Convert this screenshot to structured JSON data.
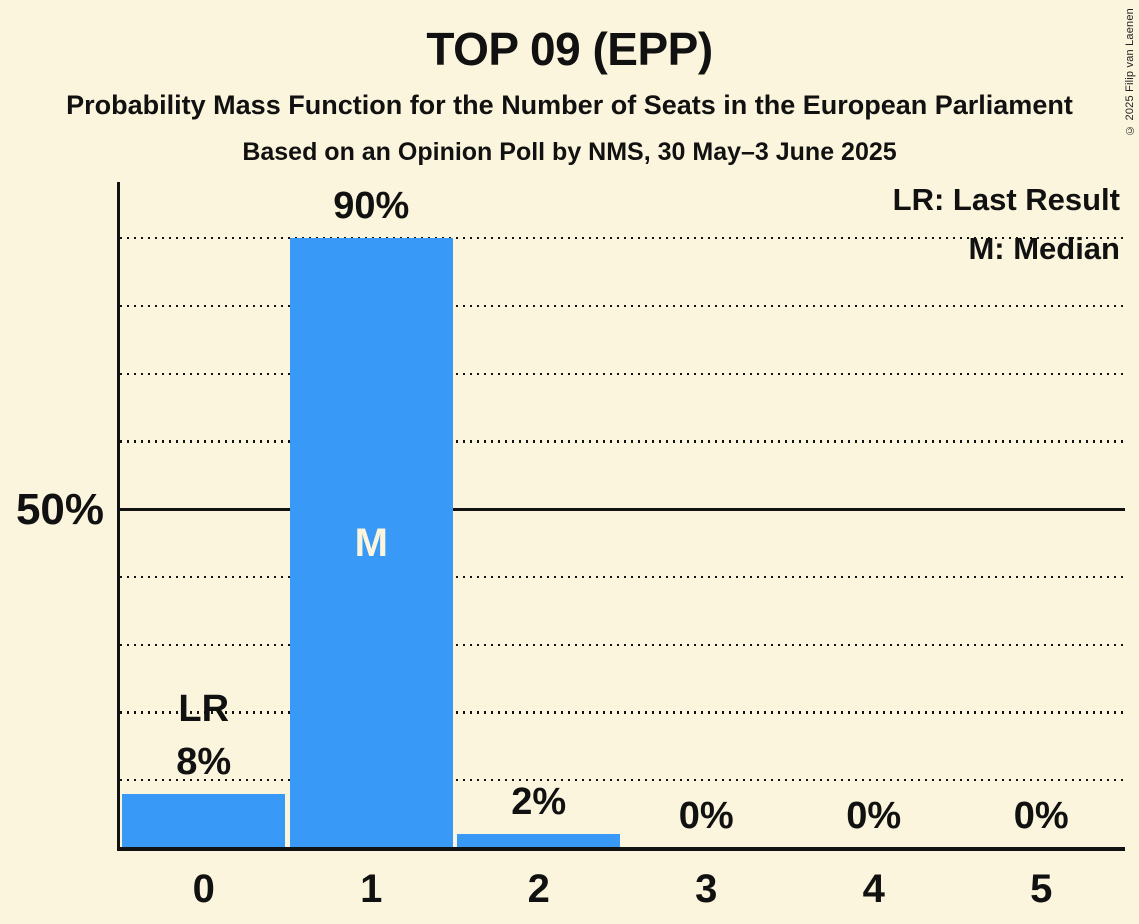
{
  "title": "TOP 09 (EPP)",
  "subtitle1": "Probability Mass Function for the Number of Seats in the European Parliament",
  "subtitle2": "Based on an Opinion Poll by NMS, 30 May–3 June 2025",
  "copyright": "© 2025 Filip van Laenen",
  "legend": {
    "lr": "LR: Last Result",
    "m": "M: Median"
  },
  "y_axis": {
    "label_50": "50%"
  },
  "colors": {
    "background": "#FAF5DC",
    "bar": "#3899F7",
    "text": "#111111",
    "bar_inner_label": "#FAF5DC"
  },
  "chart_data": {
    "type": "bar",
    "title": "TOP 09 (EPP)",
    "xlabel": "",
    "ylabel": "",
    "categories": [
      "0",
      "1",
      "2",
      "3",
      "4",
      "5"
    ],
    "values": [
      8,
      90,
      2,
      0,
      0,
      0
    ],
    "value_labels": [
      "8%",
      "90%",
      "2%",
      "0%",
      "0%",
      "0%"
    ],
    "ylim": [
      0,
      98
    ],
    "y_tick_labeled": {
      "value": 50,
      "label": "50%"
    },
    "gridlines_dotted": [
      10,
      20,
      30,
      40,
      60,
      70,
      80,
      90
    ],
    "gridline_solid": 50,
    "grid": true,
    "legend_position": "top-right",
    "annotations": [
      {
        "bar_index": 0,
        "text": "LR",
        "meaning": "Last Result",
        "placement": "above-bar"
      },
      {
        "bar_index": 1,
        "text": "M",
        "meaning": "Median",
        "placement": "inside-bar"
      }
    ]
  }
}
